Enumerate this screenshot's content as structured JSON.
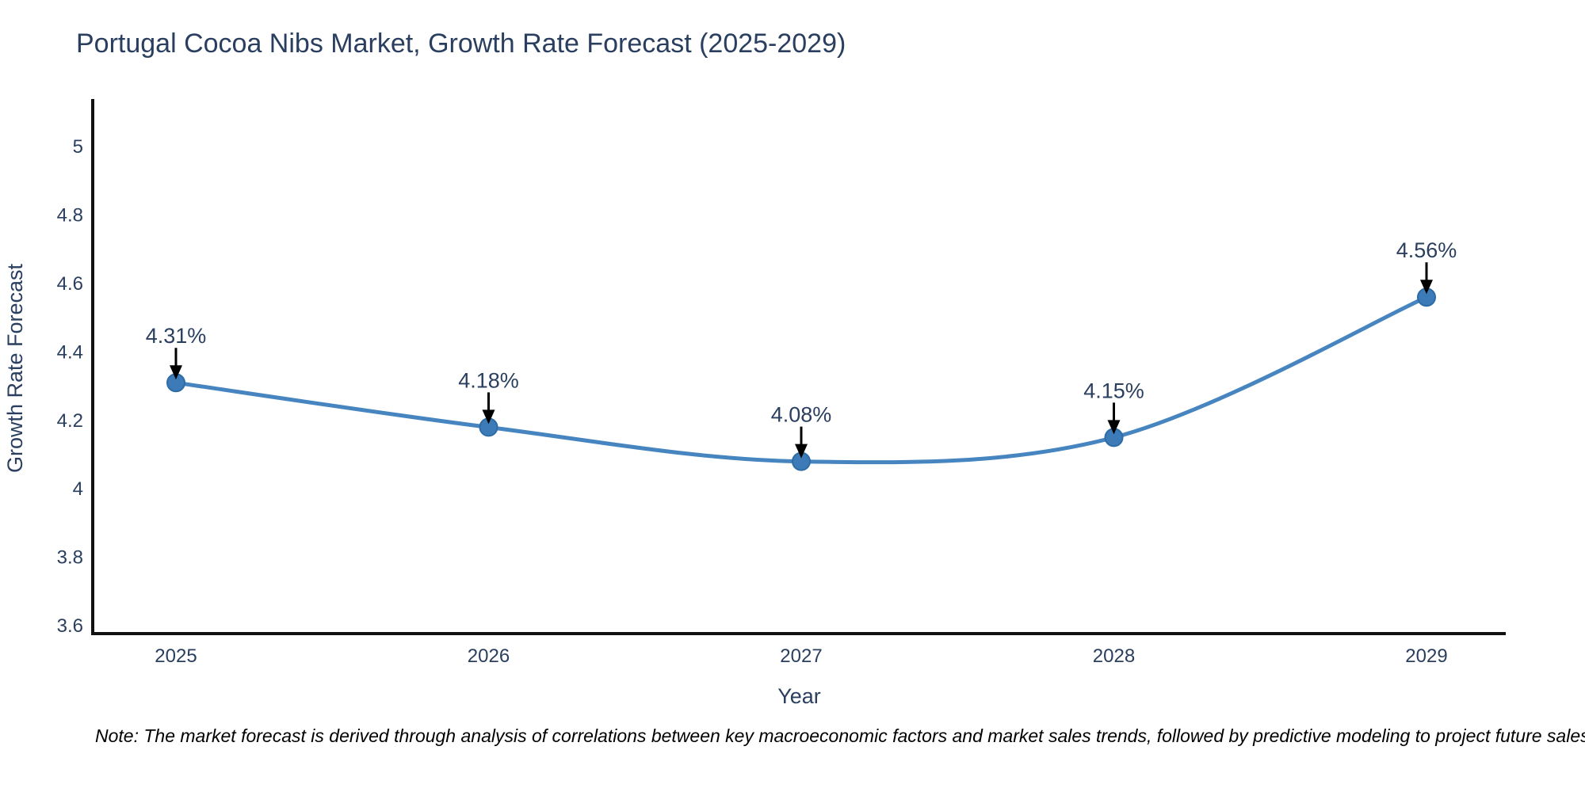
{
  "chart_data": {
    "type": "line",
    "title": "Portugal Cocoa Nibs Market, Growth Rate Forecast (2025-2029)",
    "xlabel": "Year",
    "ylabel": "Growth Rate Forecast",
    "categories": [
      "2025",
      "2026",
      "2027",
      "2028",
      "2029"
    ],
    "series": [
      {
        "name": "Growth Rate Forecast",
        "values": [
          4.31,
          4.18,
          4.08,
          4.15,
          4.56
        ],
        "labels": [
          "4.31%",
          "4.18%",
          "4.08%",
          "4.15%",
          "4.56%"
        ]
      }
    ],
    "line_shape": "spline",
    "markers": true,
    "grid": false,
    "legend": "none",
    "ylim": [
      3.577,
      5.139
    ],
    "yticks": [
      3.6,
      3.8,
      4,
      4.2,
      4.4,
      4.6,
      4.8,
      5
    ],
    "ytick_labels": [
      "3.6",
      "3.8",
      "4",
      "4.2",
      "4.4",
      "4.6",
      "4.8",
      "5"
    ],
    "annotation_style": "value-above-with-down-arrow",
    "colors": {
      "line": "#4685bf",
      "marker": "#3d7bb8",
      "marker_edge": "#2e6ca6",
      "axis": "#111111",
      "label_text": "#2a3f5f",
      "arrow": "#000000"
    },
    "footnote": "Note: The market forecast is derived through analysis of correlations between key macroeconomic factors and market sales trends, followed by predictive modeling to project future sales"
  }
}
